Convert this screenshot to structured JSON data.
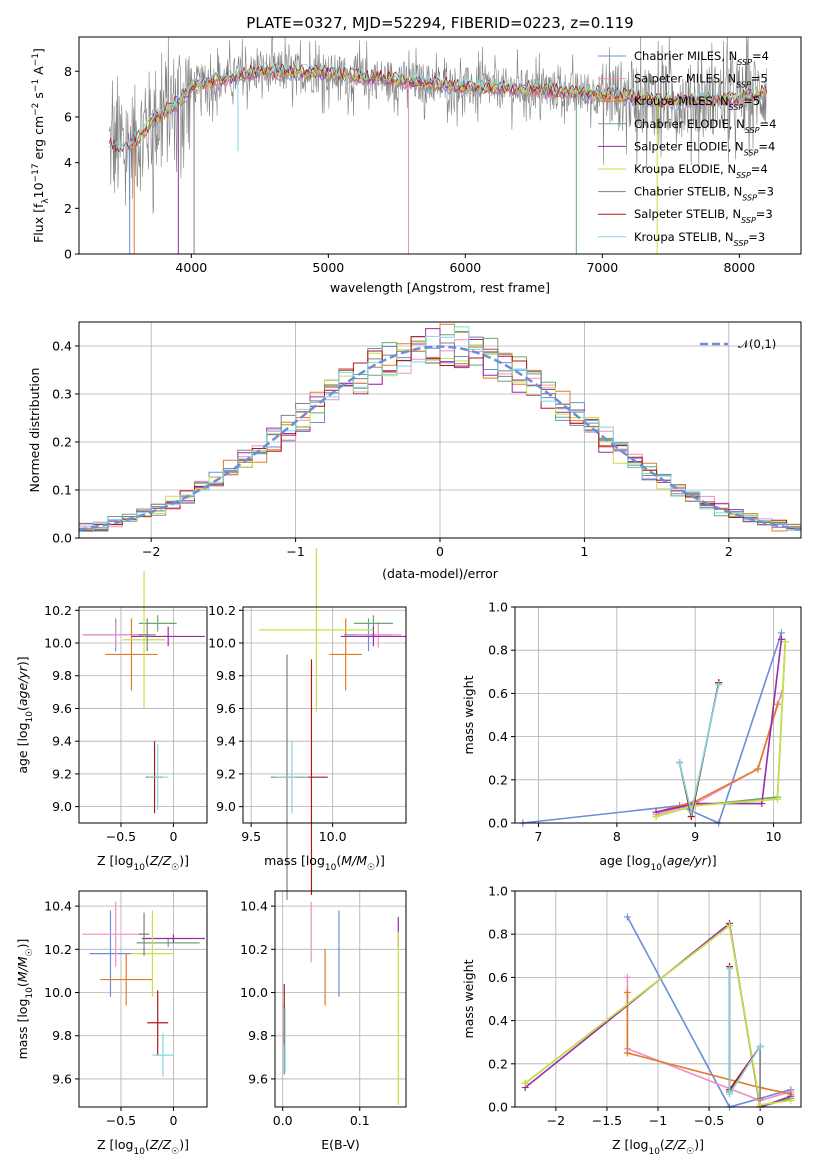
{
  "title": "PLATE=0327, MJD=52294, FIBERID=0223, z=0.119",
  "colors": {
    "Chabrier MILES": "#6a8fd8",
    "Salpeter MILES": "#f08fc8",
    "Kroupa MILES": "#e07b28",
    "Chabrier ELODIE": "#6aa870",
    "Salpeter ELODIE": "#9a2ca8",
    "Kroupa ELODIE": "#c8e040",
    "Chabrier STELIB": "#808080",
    "Salpeter STELIB": "#b01818",
    "Kroupa STELIB": "#80d8e0"
  },
  "chart_data": [
    {
      "type": "line",
      "name": "spectrum",
      "title": "PLATE=0327, MJD=52294, FIBERID=0223, z=0.119",
      "xlabel": "wavelength [Angstrom, rest frame]",
      "ylabel": "Flux [f",
      "ylabel_parts": [
        "Flux [f",
        "λ",
        "10",
        "−17",
        " erg cm",
        "−2",
        " s",
        "−1",
        " A",
        "−1",
        "]"
      ],
      "xlim": [
        3180,
        8450
      ],
      "ylim": [
        0,
        9.5
      ],
      "xticks": [
        4000,
        5000,
        6000,
        7000,
        8000
      ],
      "yticks": [
        0,
        2,
        4,
        6,
        8
      ],
      "legend_position": "upper-right",
      "legend": [
        {
          "name": "Chabrier MILES",
          "sub": "SSP",
          "n": "4"
        },
        {
          "name": "Salpeter MILES",
          "sub": "SSP",
          "n": "5"
        },
        {
          "name": "Kroupa MILES",
          "sub": "SSP",
          "n": "5"
        },
        {
          "name": "Chabrier ELODIE",
          "sub": "SSP",
          "n": "4"
        },
        {
          "name": "Salpeter ELODIE",
          "sub": "SSP",
          "n": "4"
        },
        {
          "name": "Kroupa ELODIE",
          "sub": "SSP",
          "n": "4"
        },
        {
          "name": "Chabrier STELIB",
          "sub": "SSP",
          "n": "3"
        },
        {
          "name": "Salpeter STELIB",
          "sub": "SSP",
          "n": "3"
        },
        {
          "name": "Kroupa STELIB",
          "sub": "SSP",
          "n": "3"
        }
      ],
      "continuum": {
        "x": [
          3400,
          3500,
          3600,
          3700,
          3800,
          3900,
          4000,
          4200,
          4500,
          5000,
          5500,
          6000,
          6500,
          7000,
          7500,
          8000,
          8200
        ],
        "y": [
          4.7,
          4.5,
          5.0,
          5.7,
          6.2,
          6.6,
          7.3,
          7.6,
          8.0,
          7.9,
          7.6,
          7.3,
          7.2,
          7.0,
          6.7,
          6.8,
          7.1
        ]
      },
      "absorption_lines": [
        {
          "x": 3550,
          "depth": 0.0
        },
        {
          "x": 3583,
          "depth": 0.0
        },
        {
          "x": 3905,
          "depth": 0.0
        },
        {
          "x": 4020,
          "depth": 0.0
        },
        {
          "x": 4340,
          "depth": 4.5
        },
        {
          "x": 5585,
          "depth": 0.0
        },
        {
          "x": 6810,
          "depth": 0.0
        },
        {
          "x": 7400,
          "depth": 0.0
        }
      ]
    },
    {
      "type": "bar",
      "name": "residual-histogram",
      "xlabel": "(data-model)/error",
      "ylabel": "Normed distribution",
      "xlim": [
        -2.5,
        2.5
      ],
      "ylim": [
        0,
        0.45
      ],
      "xticks": [
        -2,
        -1,
        0,
        1,
        2
      ],
      "yticks": [
        0.0,
        0.1,
        0.2,
        0.3,
        0.4
      ],
      "reference": {
        "label": "𝒩(0,1)",
        "color": "#6a8fd8",
        "style": "dashed"
      },
      "legend_position": "upper-right"
    },
    {
      "type": "scatter",
      "name": "age-vs-Z",
      "xlabel": "Z [log10(Z/Z☉)]",
      "ylabel": "age  [log10(age/yr)]",
      "xlim": [
        -0.9,
        0.32
      ],
      "ylim": [
        8.9,
        10.22
      ],
      "xticks": [
        -0.5,
        0.0
      ],
      "yticks": [
        9.0,
        9.2,
        9.4,
        9.6,
        9.8,
        10.0,
        10.2
      ],
      "points": [
        {
          "s": "Chabrier MILES",
          "x": -0.55,
          "y": 10.05,
          "dx": 0.3,
          "dy": 0.1
        },
        {
          "s": "Salpeter MILES",
          "x": -0.55,
          "y": 10.05,
          "dx": 0.32,
          "dy": 0.08
        },
        {
          "s": "Kroupa MILES",
          "x": -0.4,
          "y": 9.93,
          "dx": 0.25,
          "dy": 0.22
        },
        {
          "s": "Chabrier ELODIE",
          "x": -0.15,
          "y": 10.12,
          "dx": 0.18,
          "dy": 0.05
        },
        {
          "s": "Salpeter ELODIE",
          "x": -0.05,
          "y": 10.04,
          "dx": 0.35,
          "dy": 0.06
        },
        {
          "s": "Kroupa ELODIE",
          "x": -0.28,
          "y": 10.02,
          "dx": 0.2,
          "dy": 0.42
        },
        {
          "s": "Chabrier STELIB",
          "x": -0.25,
          "y": 10.05,
          "dx": 0.08,
          "dy": 0.1
        },
        {
          "s": "Salpeter STELIB",
          "x": -0.18,
          "y": 9.18,
          "dx": 0.08,
          "dy": 0.22
        },
        {
          "s": "Kroupa STELIB",
          "x": -0.15,
          "y": 9.18,
          "dx": 0.1,
          "dy": 0.2
        }
      ]
    },
    {
      "type": "scatter",
      "name": "age-vs-mass",
      "xlabel": "mass [log10(M/M☉)]",
      "ylabel": "",
      "xlim": [
        9.45,
        10.45
      ],
      "ylim": [
        8.9,
        10.22
      ],
      "xticks": [
        9.5,
        10.0
      ],
      "yticks": [
        9.0,
        9.2,
        9.4,
        9.6,
        9.8,
        10.0,
        10.2
      ],
      "points": [
        {
          "s": "Chabrier MILES",
          "x": 10.22,
          "y": 10.05,
          "dx": 0.15,
          "dy": 0.1
        },
        {
          "s": "Salpeter MILES",
          "x": 10.28,
          "y": 10.05,
          "dx": 0.14,
          "dy": 0.08
        },
        {
          "s": "Kroupa MILES",
          "x": 10.08,
          "y": 9.93,
          "dx": 0.1,
          "dy": 0.22
        },
        {
          "s": "Chabrier ELODIE",
          "x": 10.25,
          "y": 10.12,
          "dx": 0.12,
          "dy": 0.05
        },
        {
          "s": "Salpeter ELODIE",
          "x": 10.25,
          "y": 10.04,
          "dx": 0.2,
          "dy": 0.06
        },
        {
          "s": "Kroupa ELODIE",
          "x": 9.9,
          "y": 10.08,
          "dx": 0.35,
          "dy": 0.5
        },
        {
          "s": "Chabrier STELIB",
          "x": 9.72,
          "y": 9.18,
          "dx": 0.1,
          "dy": 0.75
        },
        {
          "s": "Salpeter STELIB",
          "x": 9.87,
          "y": 9.18,
          "dx": 0.1,
          "dy": 0.72
        },
        {
          "s": "Kroupa STELIB",
          "x": 9.75,
          "y": 9.18,
          "dx": 0.1,
          "dy": 0.22
        }
      ]
    },
    {
      "type": "line",
      "name": "mass-weight-vs-age",
      "xlabel": "age  [log10(age/yr)]",
      "ylabel": "mass weight",
      "xlim": [
        6.7,
        10.35
      ],
      "ylim": [
        0,
        1
      ],
      "xticks": [
        7,
        8,
        9,
        10
      ],
      "yticks": [
        0.0,
        0.2,
        0.4,
        0.6,
        0.8,
        1.0
      ],
      "series": [
        {
          "name": "Chabrier MILES",
          "x": [
            6.8,
            8.8,
            9.3,
            10.1
          ],
          "y": [
            0.0,
            0.08,
            0.0,
            0.88
          ]
        },
        {
          "name": "Salpeter MILES",
          "x": [
            8.5,
            9.0,
            9.8,
            10.1
          ],
          "y": [
            0.04,
            0.09,
            0.25,
            0.6
          ]
        },
        {
          "name": "Kroupa MILES",
          "x": [
            8.5,
            9.0,
            9.8,
            10.05
          ],
          "y": [
            0.05,
            0.1,
            0.25,
            0.55
          ]
        },
        {
          "name": "Chabrier ELODIE",
          "x": [
            8.5,
            9.0,
            10.05,
            10.15
          ],
          "y": [
            0.03,
            0.08,
            0.12,
            0.84
          ]
        },
        {
          "name": "Salpeter ELODIE",
          "x": [
            8.5,
            9.0,
            9.85,
            10.1
          ],
          "y": [
            0.05,
            0.09,
            0.09,
            0.85
          ]
        },
        {
          "name": "Kroupa ELODIE",
          "x": [
            8.5,
            9.0,
            10.05,
            10.15
          ],
          "y": [
            0.03,
            0.08,
            0.11,
            0.84
          ]
        },
        {
          "name": "Chabrier STELIB",
          "x": [
            8.8,
            8.95,
            9.3
          ],
          "y": [
            0.28,
            0.03,
            0.65
          ]
        },
        {
          "name": "Salpeter STELIB",
          "x": [
            8.8,
            8.95,
            9.3
          ],
          "y": [
            0.28,
            0.03,
            0.65
          ]
        },
        {
          "name": "Kroupa STELIB",
          "x": [
            8.8,
            8.95,
            9.3
          ],
          "y": [
            0.28,
            0.05,
            0.64
          ]
        }
      ]
    },
    {
      "type": "scatter",
      "name": "mass-vs-Z",
      "xlabel": "Z [log10(Z/Z☉)]",
      "ylabel": "mass [log10(M/M☉)]",
      "xlim": [
        -0.9,
        0.32
      ],
      "ylim": [
        9.47,
        10.47
      ],
      "xticks": [
        -0.5,
        0.0
      ],
      "yticks": [
        9.6,
        9.8,
        10.0,
        10.2,
        10.4
      ],
      "points": [
        {
          "s": "Chabrier MILES",
          "x": -0.6,
          "y": 10.18,
          "dx": 0.2,
          "dy": 0.2
        },
        {
          "s": "Salpeter MILES",
          "x": -0.55,
          "y": 10.27,
          "dx": 0.32,
          "dy": 0.15
        },
        {
          "s": "Kroupa MILES",
          "x": -0.45,
          "y": 10.06,
          "dx": 0.25,
          "dy": 0.12
        },
        {
          "s": "Chabrier ELODIE",
          "x": -0.05,
          "y": 10.23,
          "dx": 0.3,
          "dy": 0.02
        },
        {
          "s": "Salpeter ELODIE",
          "x": 0.0,
          "y": 10.25,
          "dx": 0.3,
          "dy": 0.02
        },
        {
          "s": "Kroupa ELODIE",
          "x": -0.2,
          "y": 10.18,
          "dx": 0.2,
          "dy": 0.2
        },
        {
          "s": "Chabrier STELIB",
          "x": -0.28,
          "y": 10.27,
          "dx": 0.05,
          "dy": 0.1
        },
        {
          "s": "Salpeter STELIB",
          "x": -0.15,
          "y": 9.86,
          "dx": 0.1,
          "dy": 0.15
        },
        {
          "s": "Kroupa STELIB",
          "x": -0.1,
          "y": 9.71,
          "dx": 0.1,
          "dy": 0.1
        }
      ]
    },
    {
      "type": "scatter",
      "name": "mass-vs-ebv",
      "xlabel": "E(B-V)",
      "ylabel": "",
      "xlim": [
        -0.01,
        0.16
      ],
      "ylim": [
        9.47,
        10.47
      ],
      "xticks": [
        0.0,
        0.1
      ],
      "yticks": [
        9.6,
        9.8,
        10.0,
        10.2,
        10.4
      ],
      "points": [
        {
          "s": "Chabrier MILES",
          "x": 0.073,
          "y": 10.18,
          "dx": 0.0,
          "dy": 0.2
        },
        {
          "s": "Salpeter MILES",
          "x": 0.037,
          "y": 10.28,
          "dx": 0.0,
          "dy": 0.14
        },
        {
          "s": "Kroupa MILES",
          "x": 0.055,
          "y": 10.07,
          "dx": 0.0,
          "dy": 0.13
        },
        {
          "s": "Chabrier ELODIE",
          "x": 0.002,
          "y": 9.8,
          "dx": 0.0,
          "dy": 0.15
        },
        {
          "s": "Salpeter ELODIE",
          "x": 0.15,
          "y": 10.28,
          "dx": 0.0,
          "dy": 0.07
        },
        {
          "s": "Kroupa ELODIE",
          "x": 0.15,
          "y": 9.88,
          "dx": 0.0,
          "dy": 0.4
        },
        {
          "s": "Chabrier STELIB",
          "x": 0.002,
          "y": 9.72,
          "dx": 0.0,
          "dy": 0.1
        },
        {
          "s": "Salpeter STELIB",
          "x": 0.002,
          "y": 9.9,
          "dx": 0.0,
          "dy": 0.14
        },
        {
          "s": "Kroupa STELIB",
          "x": 0.003,
          "y": 9.78,
          "dx": 0.0,
          "dy": 0.15
        }
      ]
    },
    {
      "type": "line",
      "name": "mass-weight-vs-Z",
      "xlabel": "Z [log10(Z/Z☉)]",
      "ylabel": "mass weight",
      "xlim": [
        -2.4,
        0.4
      ],
      "ylim": [
        0,
        1
      ],
      "xticks": [
        -2.0,
        -1.5,
        -1.0,
        -0.5,
        0.0
      ],
      "yticks": [
        0.0,
        0.2,
        0.4,
        0.6,
        0.8,
        1.0
      ],
      "series": [
        {
          "name": "Chabrier MILES",
          "x": [
            -1.3,
            -0.3,
            0.3
          ],
          "y": [
            0.88,
            0.0,
            0.08
          ]
        },
        {
          "name": "Salpeter MILES",
          "x": [
            -1.3,
            -1.3,
            0.0,
            0.3
          ],
          "y": [
            0.6,
            0.27,
            0.03,
            0.07
          ]
        },
        {
          "name": "Kroupa MILES",
          "x": [
            -1.3,
            -1.3,
            0.0,
            0.3
          ],
          "y": [
            0.53,
            0.25,
            0.09,
            0.06
          ]
        },
        {
          "name": "Chabrier ELODIE",
          "x": [
            -2.3,
            -0.3,
            0.0,
            0.3
          ],
          "y": [
            0.11,
            0.84,
            0.0,
            0.04
          ]
        },
        {
          "name": "Salpeter ELODIE",
          "x": [
            -2.3,
            -0.3,
            0.0,
            0.3
          ],
          "y": [
            0.09,
            0.85,
            0.0,
            0.05
          ]
        },
        {
          "name": "Kroupa ELODIE",
          "x": [
            -2.3,
            -0.3,
            0.0,
            0.3
          ],
          "y": [
            0.11,
            0.84,
            0.01,
            0.03
          ]
        },
        {
          "name": "Chabrier STELIB",
          "x": [
            -0.3,
            -0.3,
            0.0,
            0.0
          ],
          "y": [
            0.65,
            0.07,
            0.28,
            0.04
          ]
        },
        {
          "name": "Salpeter STELIB",
          "x": [
            -0.3,
            -0.3,
            0.0
          ],
          "y": [
            0.65,
            0.08,
            0.28
          ]
        },
        {
          "name": "Kroupa STELIB",
          "x": [
            -0.3,
            -0.3,
            0.0
          ],
          "y": [
            0.64,
            0.06,
            0.28
          ]
        }
      ]
    }
  ]
}
